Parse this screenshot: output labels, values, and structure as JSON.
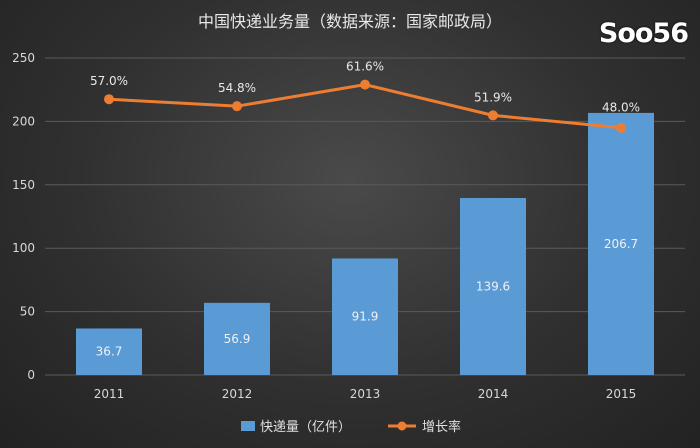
{
  "watermark": "Soo56",
  "chart_data": {
    "type": "bar",
    "title": "中国快递业务量（数据来源：国家邮政局）",
    "categories": [
      "2011",
      "2012",
      "2013",
      "2014",
      "2015"
    ],
    "series": [
      {
        "name": "快递量（亿件）",
        "type": "bar",
        "axis": "left",
        "values": [
          36.7,
          56.9,
          91.9,
          139.6,
          206.7
        ],
        "value_labels": [
          "36.7",
          "56.9",
          "91.9",
          "139.6",
          "206.7"
        ],
        "color": "#5b9bd5"
      },
      {
        "name": "增长率",
        "type": "line",
        "axis": "right-hidden",
        "values": [
          57.0,
          54.8,
          61.6,
          51.9,
          48.0
        ],
        "value_labels": [
          "57.0%",
          "54.8%",
          "61.6%",
          "51.9%",
          "48.0%"
        ],
        "color": "#ed7d31"
      }
    ],
    "ylim": [
      0,
      250
    ],
    "yticks": [
      "0",
      "50",
      "100",
      "150",
      "200",
      "250"
    ],
    "secondary_ylim": [
      -30,
      70
    ],
    "grid": true,
    "legend_position": "bottom"
  }
}
